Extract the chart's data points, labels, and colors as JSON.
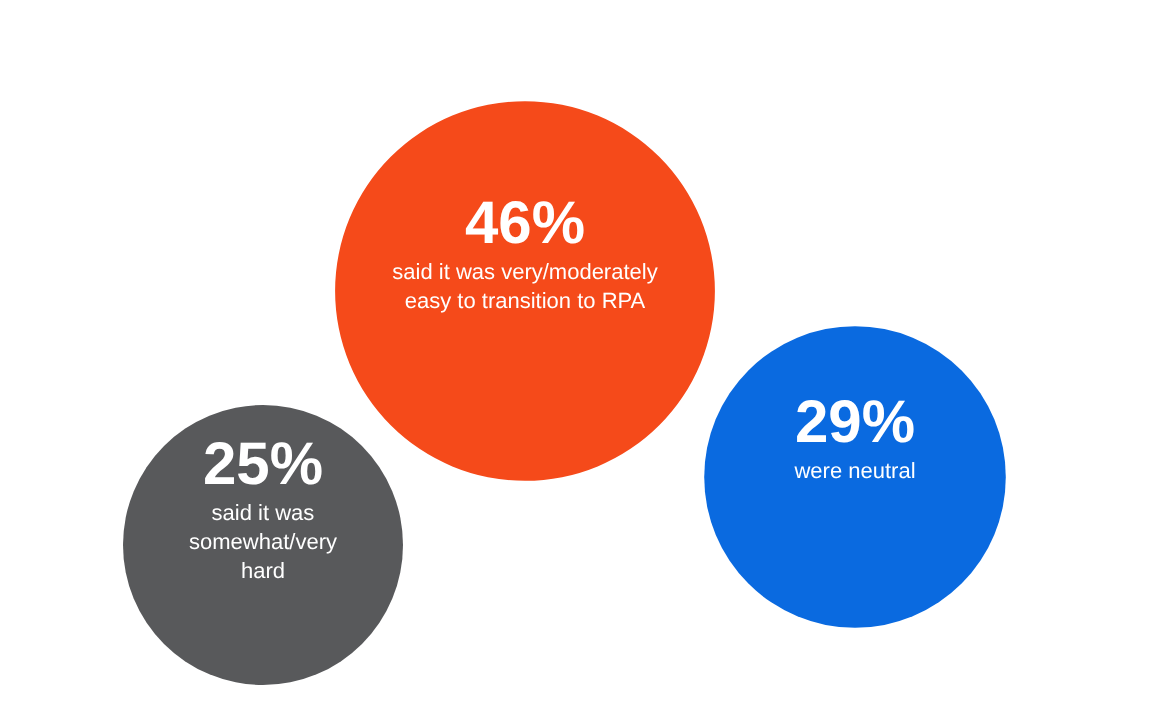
{
  "chart_data": {
    "type": "other",
    "categories": [
      "said it was very/moderately\neasy to transition to RPA",
      "were neutral",
      "said it was\nsomewhat/very\nhard"
    ],
    "values": [
      46,
      29,
      25
    ],
    "value_labels": [
      "46%",
      "29%",
      "25%"
    ],
    "colors": [
      "#f54a1a",
      "#0a6ae0",
      "#58595b"
    ]
  }
}
